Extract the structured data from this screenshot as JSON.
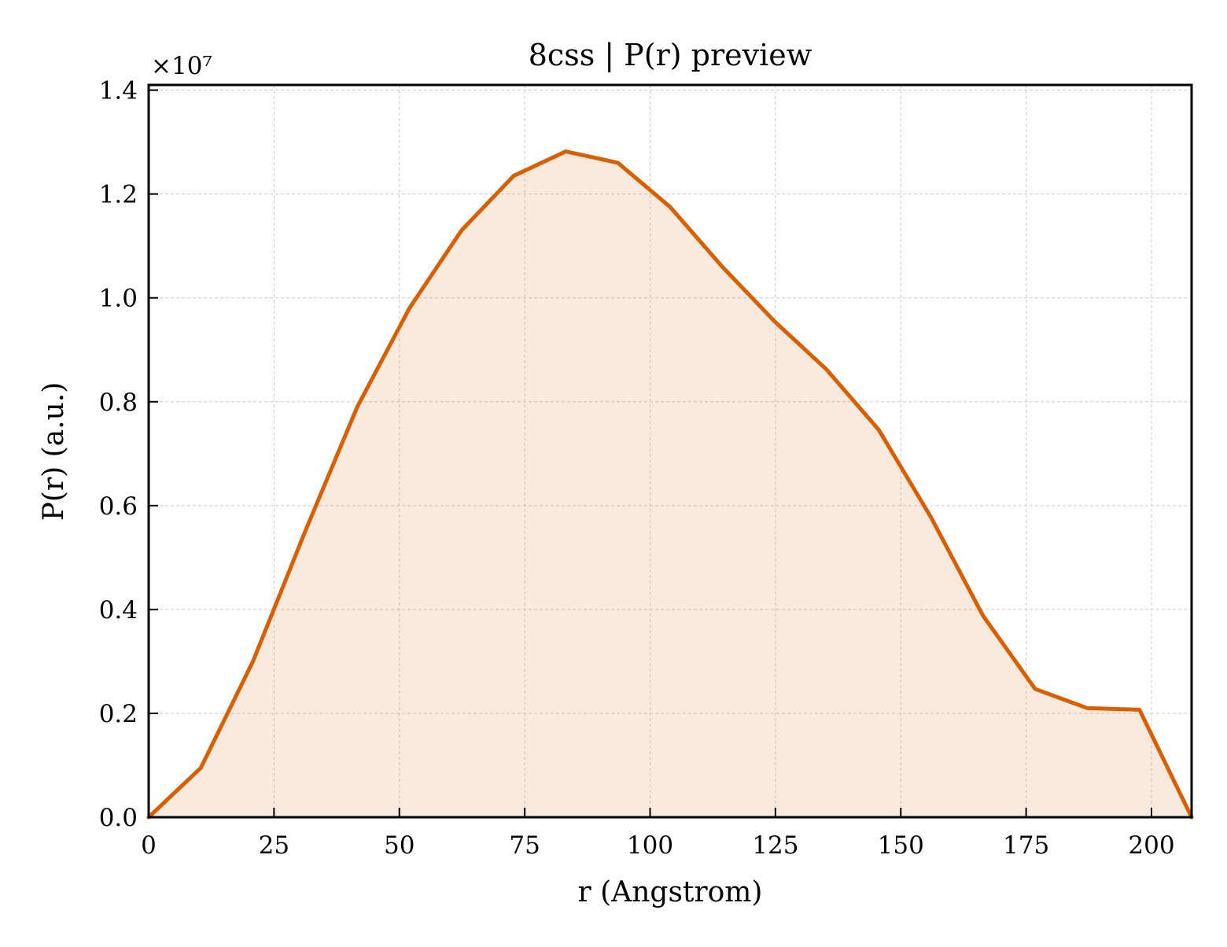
{
  "chart_data": {
    "type": "area",
    "title": "8css | P(r) preview",
    "xlabel": "r (Angstrom)",
    "ylabel": "P(r) (a.u.)",
    "y_offset_label": "×10⁷",
    "y_scale": 10000000,
    "xlim": [
      0,
      208
    ],
    "ylim": [
      0,
      1.41
    ],
    "x_ticks": [
      0,
      25,
      50,
      75,
      100,
      125,
      150,
      175,
      200
    ],
    "x_tick_labels": [
      "0",
      "25",
      "50",
      "75",
      "100",
      "125",
      "150",
      "175",
      "200"
    ],
    "y_ticks": [
      0.0,
      0.2,
      0.4,
      0.6,
      0.8,
      1.0,
      1.2,
      1.4
    ],
    "y_tick_labels": [
      "0.0",
      "0.2",
      "0.4",
      "0.6",
      "0.8",
      "1.0",
      "1.2",
      "1.4"
    ],
    "grid": true,
    "colors": {
      "line": "#d95f02",
      "fill": "#d95f02",
      "grid": "#cccccc",
      "axes": "#000000"
    },
    "series": [
      {
        "x": [
          0,
          10.4,
          20.8,
          31.2,
          41.6,
          52.0,
          62.4,
          72.8,
          83.2,
          93.6,
          104.0,
          114.4,
          124.8,
          135.2,
          145.6,
          156.0,
          166.4,
          176.8,
          187.2,
          197.6,
          208.0
        ],
        "values": [
          0.0,
          0.095,
          0.3,
          0.55,
          0.79,
          0.98,
          1.13,
          1.235,
          1.282,
          1.26,
          1.175,
          1.06,
          0.955,
          0.862,
          0.746,
          0.578,
          0.388,
          0.247,
          0.21,
          0.207,
          0.0
        ]
      }
    ]
  }
}
